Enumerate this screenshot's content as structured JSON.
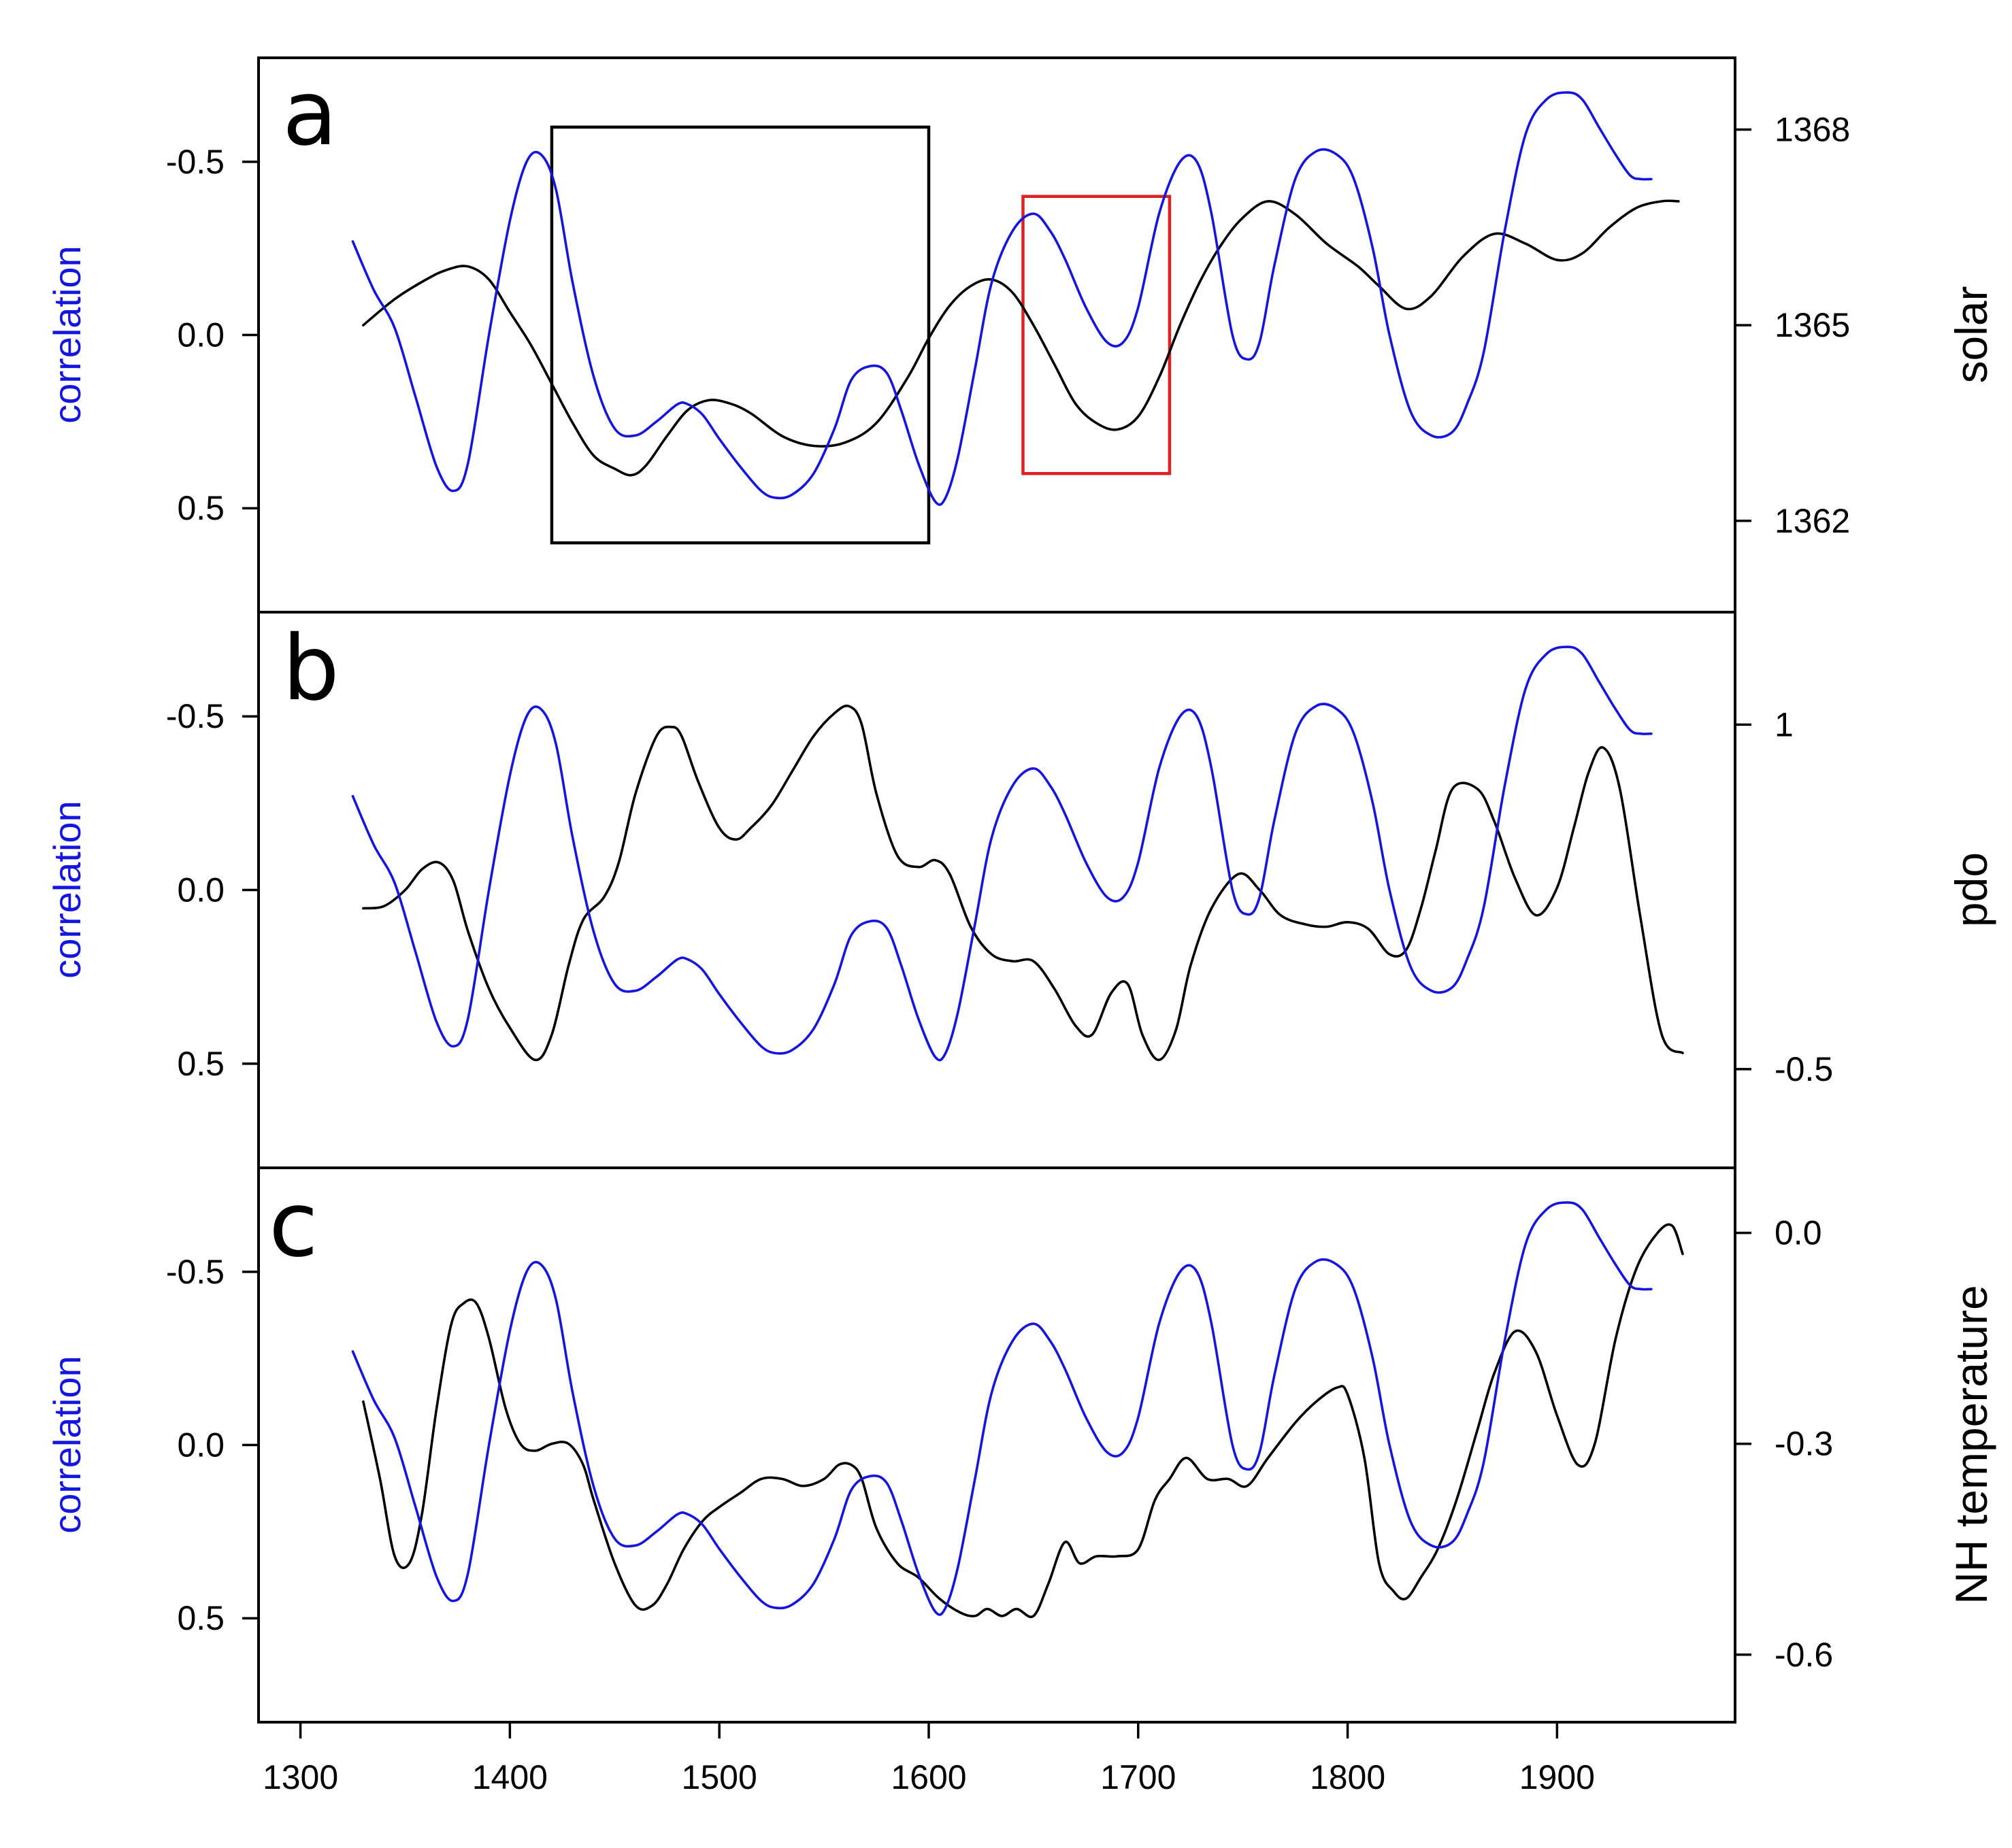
{
  "colors": {
    "correlation": "#1515e0",
    "proxy": "#000000",
    "highlight_black": "#000000",
    "highlight_red": "#e02020"
  },
  "chart_data": {
    "type": "line",
    "x_axis": {
      "range": [
        1280,
        1985
      ],
      "ticks": [
        1300,
        1400,
        1500,
        1600,
        1700,
        1800,
        1900
      ],
      "tick_labels": [
        "1300",
        "1400",
        "1500",
        "1600",
        "1700",
        "1800",
        "1900"
      ]
    },
    "correlation_series": {
      "name": "correlation",
      "x": [
        1325,
        1335,
        1345,
        1355,
        1365,
        1373,
        1380,
        1390,
        1400,
        1408,
        1415,
        1422,
        1430,
        1440,
        1450,
        1460,
        1470,
        1480,
        1485,
        1492,
        1500,
        1510,
        1520,
        1527,
        1535,
        1545,
        1555,
        1563,
        1572,
        1580,
        1587,
        1595,
        1603,
        1608,
        1614,
        1622,
        1630,
        1640,
        1650,
        1658,
        1665,
        1675,
        1685,
        1693,
        1700,
        1710,
        1720,
        1728,
        1735,
        1745,
        1752,
        1758,
        1765,
        1775,
        1785,
        1795,
        1803,
        1812,
        1820,
        1830,
        1840,
        1850,
        1857,
        1865,
        1875,
        1885,
        1895,
        1905,
        1912,
        1920,
        1928,
        1935,
        1940,
        1945
      ],
      "values": [
        -0.27,
        -0.13,
        -0.02,
        0.18,
        0.38,
        0.45,
        0.37,
        0.0,
        -0.33,
        -0.5,
        -0.52,
        -0.42,
        -0.15,
        0.12,
        0.27,
        0.29,
        0.25,
        0.2,
        0.2,
        0.23,
        0.3,
        0.38,
        0.45,
        0.47,
        0.46,
        0.4,
        0.27,
        0.13,
        0.09,
        0.11,
        0.22,
        0.37,
        0.48,
        0.47,
        0.35,
        0.1,
        -0.15,
        -0.3,
        -0.35,
        -0.3,
        -0.22,
        -0.08,
        0.02,
        0.02,
        -0.08,
        -0.35,
        -0.5,
        -0.5,
        -0.35,
        0.0,
        0.07,
        0.02,
        -0.2,
        -0.45,
        -0.53,
        -0.52,
        -0.45,
        -0.25,
        0.0,
        0.22,
        0.29,
        0.28,
        0.2,
        0.05,
        -0.3,
        -0.58,
        -0.68,
        -0.7,
        -0.68,
        -0.6,
        -0.52,
        -0.46,
        -0.45,
        -0.45
      ]
    },
    "panels": [
      {
        "letter": "a",
        "left_label": "correlation",
        "left_axis": {
          "range_top_to_bottom": [
            -0.8,
            0.8
          ],
          "ticks": [
            -0.5,
            0.0,
            0.5
          ],
          "tick_labels": [
            "-0.5",
            "0.0",
            "0.5"
          ]
        },
        "right_label": "solar",
        "right_axis": {
          "ticks": [
            1368,
            1365,
            1362
          ],
          "tick_labels": [
            "1368",
            "1365",
            "1362"
          ],
          "range": [
            1360.6,
            1369.1
          ]
        },
        "proxy_series": {
          "name": "solar",
          "x": [
            1330,
            1345,
            1360,
            1370,
            1380,
            1390,
            1400,
            1410,
            1420,
            1430,
            1440,
            1450,
            1458,
            1465,
            1475,
            1485,
            1495,
            1505,
            1515,
            1530,
            1545,
            1560,
            1575,
            1590,
            1600,
            1610,
            1620,
            1630,
            1640,
            1650,
            1660,
            1670,
            1680,
            1690,
            1700,
            1710,
            1720,
            1730,
            1740,
            1750,
            1762,
            1775,
            1790,
            1805,
            1815,
            1828,
            1840,
            1855,
            1870,
            1885,
            1900,
            1912,
            1925,
            1938,
            1950,
            1958
          ],
          "values": [
            1365.0,
            1365.4,
            1365.7,
            1365.85,
            1365.9,
            1365.7,
            1365.2,
            1364.7,
            1364.1,
            1363.5,
            1363.0,
            1362.8,
            1362.7,
            1362.85,
            1363.3,
            1363.7,
            1363.85,
            1363.8,
            1363.65,
            1363.3,
            1363.15,
            1363.2,
            1363.5,
            1364.2,
            1364.8,
            1365.3,
            1365.6,
            1365.7,
            1365.5,
            1365.0,
            1364.4,
            1363.8,
            1363.5,
            1363.4,
            1363.6,
            1364.2,
            1365.0,
            1365.7,
            1366.25,
            1366.65,
            1366.9,
            1366.7,
            1366.25,
            1365.9,
            1365.6,
            1365.25,
            1365.45,
            1366.05,
            1366.4,
            1366.25,
            1366.0,
            1366.1,
            1366.5,
            1366.8,
            1366.9,
            1366.9
          ]
        }
      },
      {
        "letter": "b",
        "left_label": "correlation",
        "left_axis": {
          "range_top_to_bottom": [
            -0.8,
            0.8
          ],
          "ticks": [
            -0.5,
            0.0,
            0.5
          ],
          "tick_labels": [
            "-0.5",
            "0.0",
            "0.5"
          ]
        },
        "right_label": "pdo",
        "right_axis": {
          "ticks": [
            1,
            -0.5
          ],
          "tick_labels": [
            "1",
            "-0.5"
          ],
          "range": [
            -0.93,
            1.49
          ]
        },
        "proxy_series": {
          "name": "pdo",
          "x": [
            1330,
            1340,
            1350,
            1358,
            1366,
            1373,
            1380,
            1390,
            1400,
            1412,
            1420,
            1428,
            1435,
            1445,
            1452,
            1460,
            1470,
            1477,
            1482,
            1490,
            1500,
            1508,
            1515,
            1525,
            1535,
            1545,
            1555,
            1562,
            1568,
            1575,
            1585,
            1595,
            1603,
            1610,
            1620,
            1630,
            1640,
            1650,
            1660,
            1670,
            1678,
            1687,
            1695,
            1702,
            1710,
            1718,
            1725,
            1735,
            1748,
            1758,
            1768,
            1780,
            1790,
            1800,
            1810,
            1820,
            1828,
            1835,
            1842,
            1850,
            1862,
            1870,
            1880,
            1890,
            1900,
            1908,
            1915,
            1922,
            1930,
            1940,
            1950,
            1960
          ],
          "values": [
            0.2,
            0.21,
            0.28,
            0.37,
            0.4,
            0.32,
            0.1,
            -0.15,
            -0.32,
            -0.46,
            -0.35,
            -0.05,
            0.15,
            0.25,
            0.4,
            0.7,
            0.95,
            0.99,
            0.95,
            0.75,
            0.55,
            0.5,
            0.55,
            0.65,
            0.8,
            0.95,
            1.05,
            1.08,
            1.0,
            0.7,
            0.43,
            0.38,
            0.41,
            0.35,
            0.12,
            0.0,
            -0.03,
            -0.03,
            -0.15,
            -0.31,
            -0.35,
            -0.17,
            -0.13,
            -0.35,
            -0.46,
            -0.33,
            -0.05,
            0.2,
            0.35,
            0.28,
            0.17,
            0.13,
            0.12,
            0.14,
            0.11,
            0.0,
            0.02,
            0.2,
            0.45,
            0.72,
            0.72,
            0.58,
            0.33,
            0.17,
            0.29,
            0.55,
            0.79,
            0.9,
            0.72,
            0.15,
            -0.35,
            -0.43
          ]
        }
      },
      {
        "letter": "c",
        "left_label": "correlation",
        "left_axis": {
          "range_top_to_bottom": [
            -0.8,
            0.8
          ],
          "ticks": [
            -0.5,
            0.0,
            0.5
          ],
          "tick_labels": [
            "-0.5",
            "0.0",
            "0.5"
          ]
        },
        "right_label": "NH temperature",
        "right_axis": {
          "ticks": [
            0.0,
            -0.3,
            -0.6
          ],
          "tick_labels": [
            "0.0",
            "-0.3",
            "-0.6"
          ],
          "range": [
            -0.696,
            0.0925
          ]
        },
        "proxy_series": {
          "name": "NH temperature",
          "x": [
            1330,
            1338,
            1345,
            1352,
            1358,
            1365,
            1372,
            1378,
            1384,
            1390,
            1398,
            1405,
            1412,
            1420,
            1428,
            1435,
            1440,
            1450,
            1460,
            1468,
            1475,
            1483,
            1492,
            1500,
            1510,
            1520,
            1530,
            1540,
            1550,
            1557,
            1563,
            1568,
            1575,
            1585,
            1595,
            1605,
            1615,
            1622,
            1628,
            1635,
            1642,
            1650,
            1657,
            1665,
            1672,
            1680,
            1690,
            1700,
            1708,
            1715,
            1723,
            1733,
            1743,
            1752,
            1762,
            1775,
            1785,
            1795,
            1800,
            1808,
            1815,
            1822,
            1828,
            1835,
            1843,
            1852,
            1862,
            1870,
            1880,
            1890,
            1900,
            1910,
            1918,
            1928,
            1938,
            1948,
            1955,
            1960
          ],
          "values": [
            -0.24,
            -0.35,
            -0.46,
            -0.47,
            -0.4,
            -0.25,
            -0.13,
            -0.1,
            -0.1,
            -0.15,
            -0.25,
            -0.3,
            -0.31,
            -0.3,
            -0.3,
            -0.33,
            -0.38,
            -0.47,
            -0.53,
            -0.53,
            -0.5,
            -0.45,
            -0.41,
            -0.39,
            -0.37,
            -0.35,
            -0.35,
            -0.36,
            -0.35,
            -0.33,
            -0.33,
            -0.35,
            -0.42,
            -0.47,
            -0.49,
            -0.52,
            -0.54,
            -0.545,
            -0.535,
            -0.545,
            -0.535,
            -0.545,
            -0.5,
            -0.44,
            -0.47,
            -0.46,
            -0.46,
            -0.45,
            -0.38,
            -0.35,
            -0.32,
            -0.35,
            -0.35,
            -0.36,
            -0.32,
            -0.27,
            -0.24,
            -0.22,
            -0.23,
            -0.32,
            -0.47,
            -0.51,
            -0.52,
            -0.49,
            -0.45,
            -0.38,
            -0.28,
            -0.2,
            -0.14,
            -0.17,
            -0.26,
            -0.33,
            -0.3,
            -0.15,
            -0.05,
            0.0,
            0.01,
            -0.03
          ]
        }
      }
    ],
    "highlight_boxes": [
      {
        "panel": "a",
        "color": "black",
        "x_range": [
          1420,
          1600
        ],
        "y_range": [
          -0.6,
          0.6
        ]
      },
      {
        "panel": "a",
        "color": "red",
        "x_range": [
          1645,
          1715
        ],
        "y_range": [
          -0.4,
          0.4
        ]
      }
    ]
  }
}
